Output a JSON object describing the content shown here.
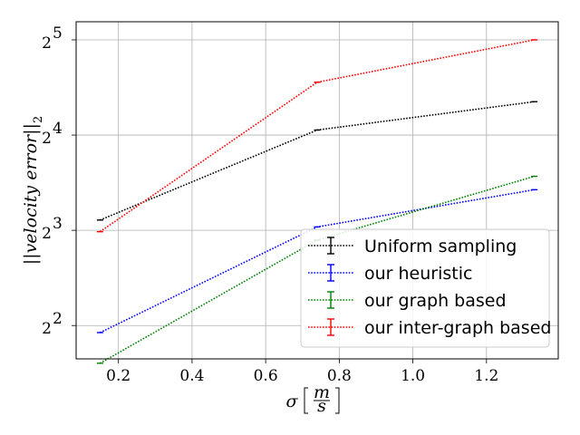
{
  "chart_data": {
    "type": "line",
    "title": "",
    "xlabel": {
      "symbol": "σ",
      "unit_num": "m",
      "unit_den": "s"
    },
    "ylabel": {
      "prefix": "||",
      "italic": "velocity error",
      "suffix": "||",
      "sub": "2"
    },
    "xlim": [
      0.085,
      1.395
    ],
    "ylim_log2": [
      1.65,
      5.19
    ],
    "yscale": "log2",
    "grid": true,
    "legend_position": "lower-right",
    "x_ticks": [
      {
        "value": 0.2,
        "label": "0.2"
      },
      {
        "value": 0.4,
        "label": "0.4"
      },
      {
        "value": 0.6,
        "label": "0.6"
      },
      {
        "value": 0.8,
        "label": "0.8"
      },
      {
        "value": 1.0,
        "label": "1.0"
      },
      {
        "value": 1.2,
        "label": "1.2"
      }
    ],
    "y_ticks": [
      {
        "value": 4,
        "base": "2",
        "exp": "2"
      },
      {
        "value": 8,
        "base": "2",
        "exp": "3"
      },
      {
        "value": 16,
        "base": "2",
        "exp": "4"
      },
      {
        "value": 32,
        "base": "2",
        "exp": "5"
      }
    ],
    "x": [
      0.15,
      0.74,
      1.33
    ],
    "series": [
      {
        "name": "Uniform sampling",
        "color": "#000000",
        "values": [
          8.62,
          16.6,
          20.4
        ]
      },
      {
        "name": "our heuristic",
        "color": "#0000ff",
        "values": [
          3.8,
          8.2,
          10.75
        ]
      },
      {
        "name": "our graph based",
        "color": "#008000",
        "values": [
          3.04,
          7.45,
          11.85
        ]
      },
      {
        "name": "our inter-graph based",
        "color": "#ff0000",
        "values": [
          7.92,
          23.5,
          32.0
        ]
      }
    ]
  }
}
